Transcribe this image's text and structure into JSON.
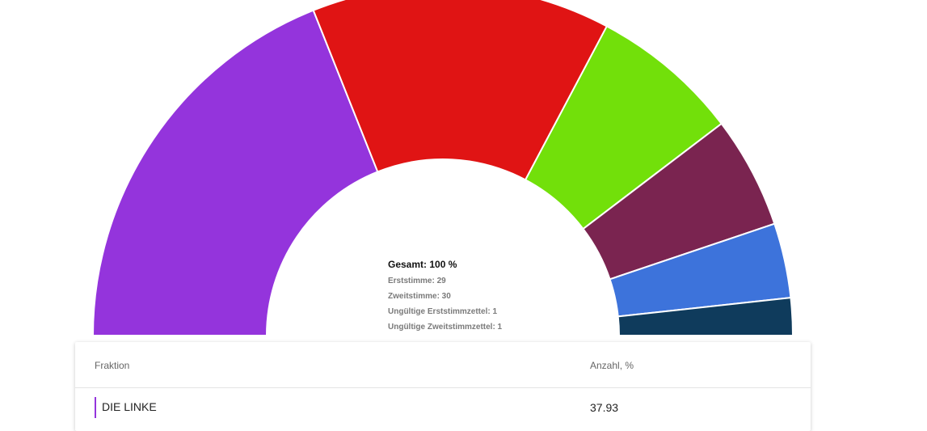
{
  "chart_data": {
    "type": "pie",
    "variant": "semi-donut",
    "segments": [
      {
        "color": "#9434dc"
      },
      {
        "color": "#e01414"
      },
      {
        "color": "#72e00a"
      },
      {
        "color": "#7a2450"
      },
      {
        "color": "#3d73db"
      },
      {
        "color": "#0f3b5c"
      }
    ],
    "values": [
      37.93,
      27.59,
      13.79,
      10.34,
      6.9,
      3.45
    ]
  },
  "center": {
    "total_label": "Gesamt: 100 %",
    "lines": [
      "Erststimme: 29",
      "Zweitstimme: 30",
      "Ungültige Erststimmzettel: 1",
      "Ungültige Zweitstimmzettel: 1"
    ]
  },
  "table": {
    "columns": [
      "Fraktion",
      "Anzahl, %"
    ],
    "rows": [
      {
        "name": "DIE LINKE",
        "value": "37.93",
        "color": "#9434dc"
      }
    ]
  }
}
